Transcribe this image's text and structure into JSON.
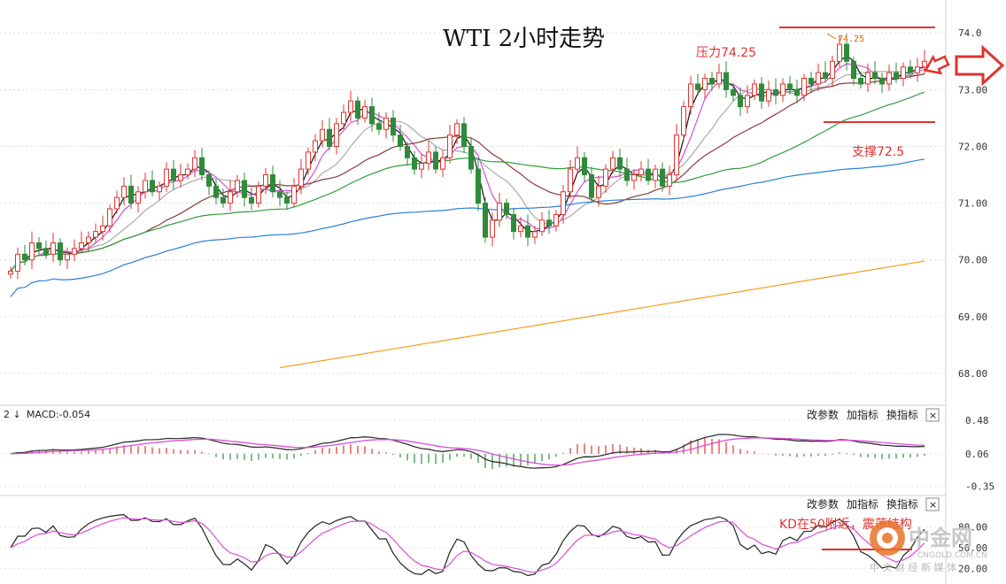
{
  "chart_data": [
    {
      "type": "candlestick",
      "title": "WTI 2小时走势",
      "ylim": [
        67.5,
        74.3
      ],
      "yticks": [
        74.0,
        73.0,
        72.0,
        71.0,
        70.0,
        69.0,
        68.0
      ],
      "ytick_labels": [
        "74.0",
        "73.00",
        "72.00",
        "71.00",
        "70.00",
        "69.00",
        "68.00"
      ],
      "grid": true,
      "closes": [
        69.8,
        70.1,
        70.0,
        70.3,
        70.2,
        70.1,
        70.3,
        70.0,
        70.1,
        70.2,
        70.3,
        70.4,
        70.5,
        70.6,
        70.9,
        71.1,
        71.3,
        71.0,
        71.2,
        71.4,
        71.2,
        71.3,
        71.6,
        71.4,
        71.5,
        71.6,
        71.8,
        71.5,
        71.3,
        71.1,
        71.0,
        71.2,
        71.4,
        71.1,
        71.0,
        71.3,
        71.5,
        71.2,
        71.1,
        71.0,
        71.3,
        71.6,
        71.9,
        72.1,
        72.3,
        72.0,
        72.4,
        72.6,
        72.8,
        72.5,
        72.7,
        72.4,
        72.3,
        72.5,
        72.2,
        72.0,
        71.8,
        71.6,
        71.7,
        71.9,
        71.6,
        71.8,
        72.2,
        72.4,
        72.0,
        71.6,
        71.0,
        70.4,
        70.7,
        71.0,
        70.8,
        70.5,
        70.6,
        70.4,
        70.5,
        70.7,
        70.6,
        70.8,
        71.2,
        71.6,
        71.8,
        71.5,
        71.1,
        71.3,
        71.6,
        71.8,
        71.6,
        71.4,
        71.5,
        71.6,
        71.4,
        71.6,
        71.3,
        71.5,
        72.2,
        72.7,
        73.1,
        73.0,
        73.2,
        73.1,
        73.3,
        73.0,
        72.9,
        72.7,
        72.9,
        73.1,
        72.8,
        73.0,
        72.9,
        73.1,
        73.0,
        72.9,
        73.2,
        73.1,
        73.3,
        73.2,
        73.5,
        73.8,
        73.5,
        73.2,
        73.1,
        73.3,
        73.2,
        73.1,
        73.3,
        73.2,
        73.4,
        73.3,
        73.4,
        73.5
      ],
      "moving_averages": [
        {
          "color": "#111111",
          "label": ""
        },
        {
          "color": "#d84fd6",
          "label": ""
        },
        {
          "color": "#aaaaaa",
          "label": ""
        },
        {
          "color": "#8b3a3a",
          "label": ""
        },
        {
          "color": "#2e9d3a",
          "label": ""
        },
        {
          "color": "#2a7fd4",
          "label": ""
        },
        {
          "color": "#f0a020",
          "label": ""
        }
      ],
      "annotations": [
        {
          "text": "压力74.25",
          "price": 74.25
        },
        {
          "text": "支撑72.5",
          "price": 72.5
        },
        {
          "text": "74.25",
          "price": 74.25
        }
      ]
    },
    {
      "type": "macd",
      "header": "MACD:-0.054",
      "yticks": [
        0.48,
        0.06,
        -0.35
      ],
      "ytick_labels": [
        "0.48",
        "0.06",
        "-0.35"
      ],
      "ylim": [
        -0.42,
        0.58
      ]
    },
    {
      "type": "kd",
      "yticks": [
        80.0,
        50.0,
        20.0
      ],
      "ytick_labels": [
        "80.00",
        "50.00",
        "20.00"
      ],
      "ylim": [
        0,
        100
      ],
      "annotation": "KD在50附近，震荡结构"
    }
  ],
  "toolbar": {
    "change_params": "改参数",
    "add_indicator": "加指标",
    "switch_indicator": "换指标",
    "close": "×"
  },
  "macd_prefix": "2 ↓",
  "watermark": {
    "brand": "中金网",
    "sub": "中 文 财 经 新 媒 体",
    "url": "CNGOLD.COM.CN"
  },
  "colors": {
    "up": "#e0332f",
    "down": "#2e8b3a",
    "accent": "#e0332f"
  }
}
